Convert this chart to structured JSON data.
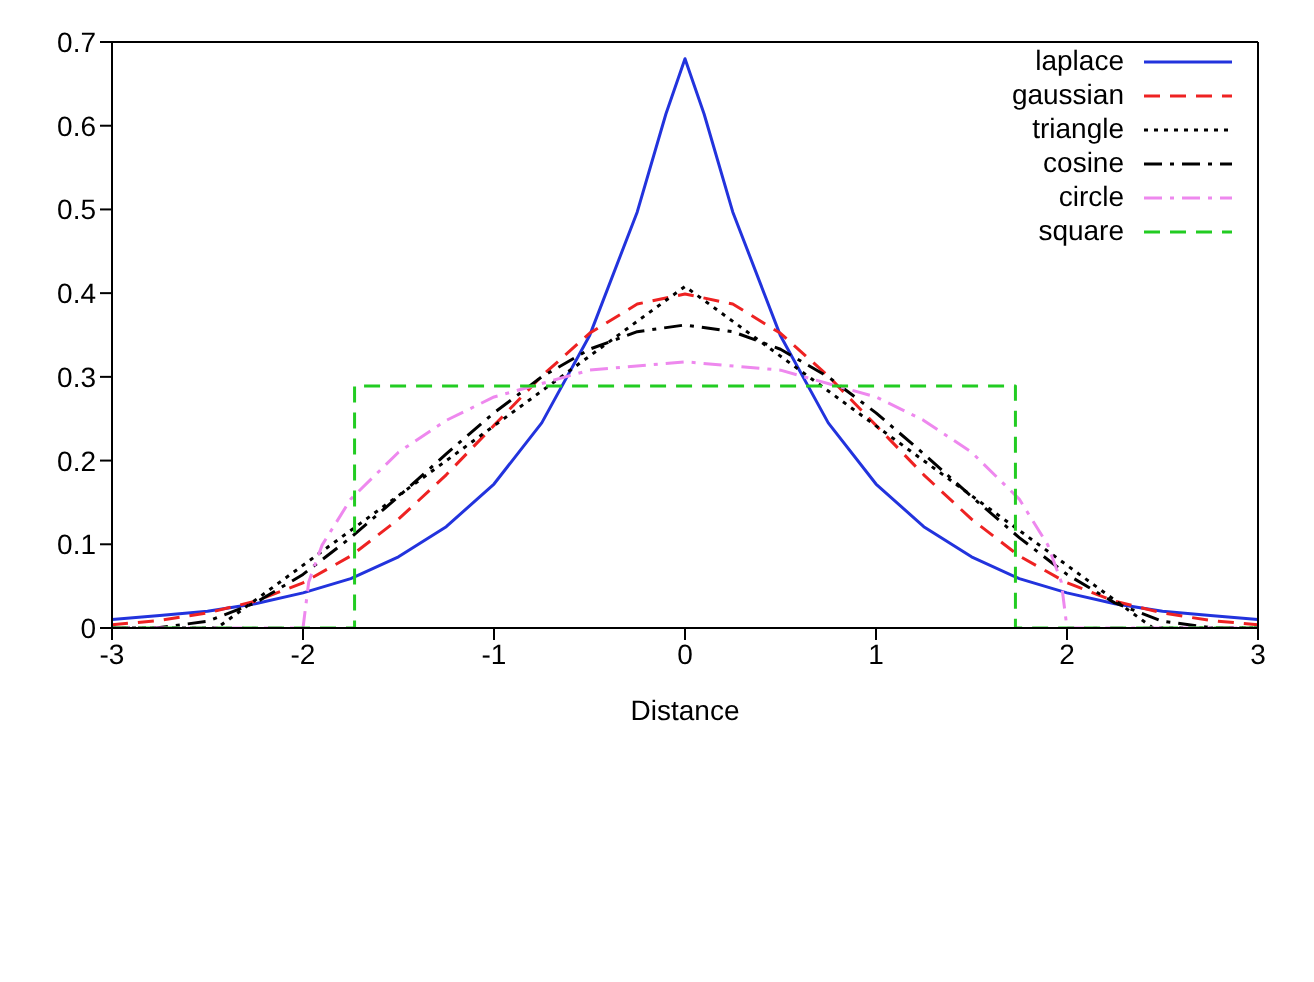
{
  "chart_data": {
    "type": "line",
    "xlabel": "Distance",
    "xlim": [
      -3,
      3
    ],
    "xticks": [
      -3,
      -2,
      -1,
      0,
      1,
      2,
      3
    ],
    "ylim": [
      0,
      0.7
    ],
    "yticks": [
      0,
      0.1,
      0.2,
      0.3,
      0.4,
      0.5,
      0.6,
      0.7
    ],
    "legend": "top right",
    "marker": "none",
    "series": [
      {
        "name": "laplace",
        "color": "#2233dd",
        "line_style": "solid",
        "x": [
          -3,
          -2.75,
          -2.5,
          -2.25,
          -2,
          -1.75,
          -1.5,
          -1.25,
          -1,
          -0.75,
          -0.5,
          -0.25,
          -0.1,
          0,
          0.1,
          0.25,
          0.5,
          0.75,
          1,
          1.25,
          1.5,
          1.75,
          2,
          2.25,
          2.5,
          2.75,
          3
        ],
        "values": [
          0.01,
          0.015,
          0.02,
          0.029,
          0.042,
          0.059,
          0.085,
          0.121,
          0.172,
          0.245,
          0.349,
          0.497,
          0.614,
          0.68,
          0.614,
          0.497,
          0.349,
          0.245,
          0.172,
          0.121,
          0.085,
          0.059,
          0.042,
          0.029,
          0.02,
          0.015,
          0.01
        ]
      },
      {
        "name": "gaussian",
        "color": "#ee2222",
        "line_style": "dashed",
        "x": [
          -3,
          -2.75,
          -2.5,
          -2.25,
          -2,
          -1.75,
          -1.5,
          -1.25,
          -1,
          -0.75,
          -0.5,
          -0.25,
          0,
          0.25,
          0.5,
          0.75,
          1,
          1.25,
          1.5,
          1.75,
          2,
          2.25,
          2.5,
          2.75,
          3
        ],
        "values": [
          0.004,
          0.009,
          0.018,
          0.032,
          0.054,
          0.086,
          0.13,
          0.183,
          0.242,
          0.301,
          0.352,
          0.387,
          0.399,
          0.387,
          0.352,
          0.301,
          0.242,
          0.183,
          0.13,
          0.086,
          0.054,
          0.032,
          0.018,
          0.009,
          0.004
        ]
      },
      {
        "name": "triangle",
        "color": "#000000",
        "line_style": "dotted",
        "x": [
          -3,
          -2.45,
          0,
          2.45,
          3
        ],
        "values": [
          0,
          0,
          0.408,
          0,
          0
        ]
      },
      {
        "name": "cosine",
        "color": "#000000",
        "line_style": "dashdot",
        "x": [
          -3,
          -2.77,
          -2.5,
          -2.25,
          -2,
          -1.75,
          -1.5,
          -1.25,
          -1,
          -0.75,
          -0.5,
          -0.25,
          0,
          0.25,
          0.5,
          0.75,
          1,
          1.25,
          1.5,
          1.75,
          2,
          2.25,
          2.5,
          2.77,
          3
        ],
        "values": [
          0,
          0,
          0.008,
          0.03,
          0.064,
          0.108,
          0.157,
          0.208,
          0.257,
          0.3,
          0.333,
          0.354,
          0.362,
          0.354,
          0.333,
          0.3,
          0.257,
          0.208,
          0.157,
          0.108,
          0.064,
          0.03,
          0.008,
          0,
          0
        ]
      },
      {
        "name": "circle",
        "color": "#ee88ee",
        "line_style": "dashdot",
        "x": [
          -3,
          -2,
          -1.97,
          -1.9,
          -1.75,
          -1.5,
          -1.25,
          -1,
          -0.5,
          0,
          0.5,
          1,
          1.25,
          1.5,
          1.75,
          1.9,
          1.97,
          2,
          3
        ],
        "values": [
          0,
          0,
          0.055,
          0.099,
          0.154,
          0.21,
          0.248,
          0.276,
          0.308,
          0.318,
          0.308,
          0.276,
          0.248,
          0.21,
          0.154,
          0.099,
          0.055,
          0,
          0
        ]
      },
      {
        "name": "square",
        "color": "#22cc22",
        "line_style": "dashed",
        "x": [
          -3,
          -1.73,
          -1.73,
          1.73,
          1.73,
          3
        ],
        "values": [
          0,
          0,
          0.289,
          0.289,
          0,
          0
        ]
      }
    ]
  }
}
